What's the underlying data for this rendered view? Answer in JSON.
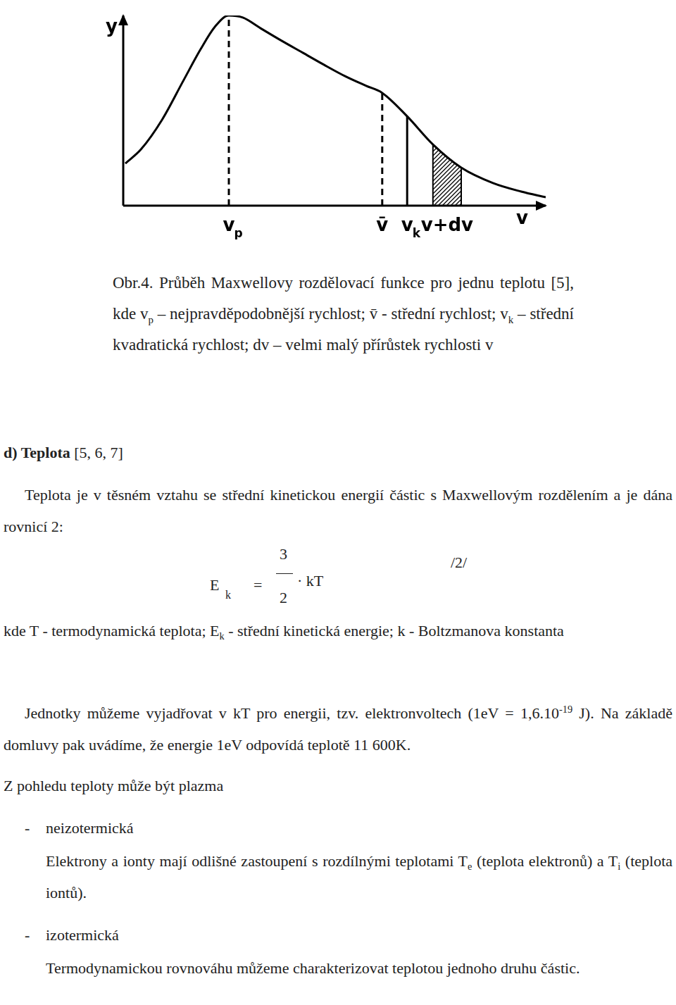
{
  "chart_data": {
    "type": "line",
    "x_label": "v",
    "y_label": "y",
    "x": [
      0.5,
      4.2,
      9.2,
      14.2,
      18.3,
      21.7,
      25,
      28.3,
      32.5,
      37.5,
      42.5,
      47.5,
      52.5,
      57.5,
      61.3,
      67.2,
      73.3,
      80,
      87.5,
      94.2,
      100
    ],
    "values": [
      22.2,
      29.6,
      45.2,
      65.6,
      82.2,
      94.1,
      100,
      98.9,
      93.3,
      86.7,
      80.4,
      74.1,
      68.1,
      63,
      59.3,
      47,
      32.2,
      20,
      11.9,
      7.4,
      4.4
    ],
    "color": "#000000",
    "xlim": [
      0,
      100
    ],
    "ylim": [
      0,
      100
    ],
    "grid": false,
    "tick_labels": false,
    "markers": [
      {
        "x": 25,
        "label": "v",
        "sub": "p",
        "line_style": "dashed"
      },
      {
        "x": 61.3,
        "label": "v̄",
        "line_style": "dashed"
      },
      {
        "x": 67.2,
        "label": "v",
        "sub": "k",
        "line_style": "solid"
      }
    ],
    "band": {
      "from": 73.3,
      "to": 80,
      "label": "v+dv"
    }
  },
  "document": {
    "caption": [
      "Obr.4. Průběh Maxwellovy rozdělovací funkce pro jednu teplotu [5], kde v",
      {
        "sub": "p"
      },
      " – nejpravděpodobnější rychlost; v̄ - střední rychlost; v",
      {
        "sub": "k"
      },
      " – střední kvadratická rychlost; dv – velmi malý přírůstek rychlosti v"
    ],
    "heading": [
      {
        "b": "d) Teplota"
      },
      " [5, 6, 7]"
    ],
    "intro": [
      "Teplota je v těsném vztahu se střední kinetickou energií částic s Maxwellovým rozdělením a je dána rovnicí 2:"
    ],
    "equation": {
      "lhs": "E",
      "lhs_sub": "k",
      "eq": "=",
      "num": "3",
      "den": "2",
      "rhs": "· kT",
      "number": "/2/"
    },
    "legend_text": [
      "kde T - termodynamická teplota; E",
      {
        "sub": "k"
      },
      " - střední kinetická energie; k - Boltzmanova konstanta"
    ],
    "units": [
      "Jednotky můžeme vyjadřovat v kT pro energii, tzv. elektronvoltech (1eV = 1,6.10",
      {
        "sup": "-19"
      },
      " J). Na základě domluvy pak uvádíme, že energie 1eV odpovídá teplotě 11 600K."
    ],
    "plasma_intro": [
      "Z pohledu teploty může být plazma"
    ],
    "plasma_list": {
      "marker": "-",
      "items": [
        {
          "name": "neizotermická",
          "text": [
            "Elektrony a ionty mají odlišné zastoupení s rozdílnými teplotami T",
            {
              "sub": "e"
            },
            " (teplota elektronů) a T",
            {
              "sub": "i"
            },
            " (teplota iontů)."
          ]
        },
        {
          "name": "izotermická",
          "text": [
            "Termodynamickou rovnováhu můžeme charakterizovat teplotou jednoho druhu částic."
          ]
        }
      ]
    }
  }
}
